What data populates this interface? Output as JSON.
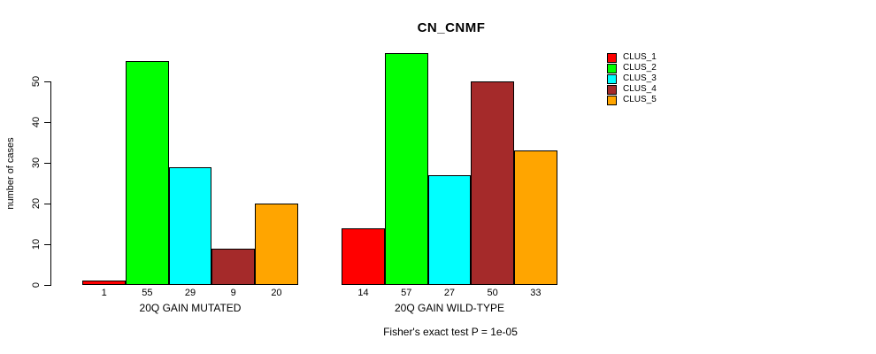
{
  "chart_data": {
    "type": "bar",
    "title": "CN_CNMF",
    "ylabel": "number of cases",
    "annotation": "Fisher's exact test P = 1e-05",
    "ylim": [
      0,
      57.5
    ],
    "yticks": [
      0,
      10,
      20,
      30,
      40,
      50
    ],
    "grid": false,
    "legend_position": "right",
    "series": [
      {
        "name": "CLUS_1",
        "color": "#FF0000"
      },
      {
        "name": "CLUS_2",
        "color": "#00FF00"
      },
      {
        "name": "CLUS_3",
        "color": "#00FFFF"
      },
      {
        "name": "CLUS_4",
        "color": "#A52A2A"
      },
      {
        "name": "CLUS_5",
        "color": "#FFA500"
      }
    ],
    "groups": [
      {
        "label": "20Q GAIN MUTATED",
        "values": [
          1,
          55,
          29,
          9,
          20
        ]
      },
      {
        "label": "20Q GAIN WILD-TYPE",
        "values": [
          14,
          57,
          27,
          50,
          33
        ]
      }
    ],
    "bar_border_color": "#000000",
    "axis_color": "#000000"
  }
}
